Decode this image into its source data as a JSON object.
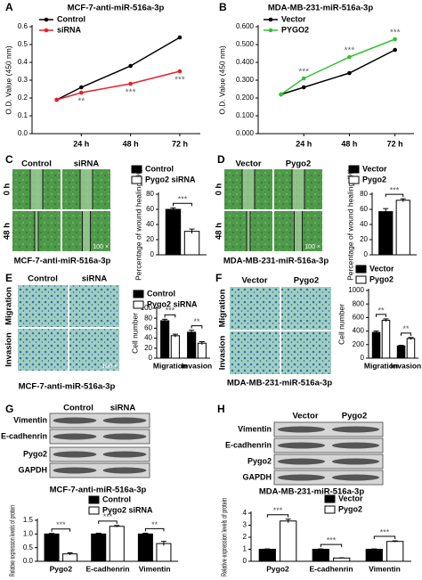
{
  "chart_data": [
    {
      "panel": "A",
      "type": "line",
      "title": "MCF-7-anti-miR-516a-3p",
      "y_label": "O.D. Value (450 nm)",
      "x": [
        12,
        24,
        48,
        72
      ],
      "xlim": [
        0,
        82
      ],
      "xticks": [
        {
          "value": 24,
          "label": "24 h"
        },
        {
          "value": 48,
          "label": "48 h"
        },
        {
          "value": 72,
          "label": "72 h"
        }
      ],
      "ylim": [
        0,
        0.6
      ],
      "yticks": [
        {
          "value": 0,
          "label": "0.0"
        },
        0.1,
        0.2,
        0.3,
        0.4,
        0.5,
        0.6
      ],
      "series": [
        {
          "name": "Control",
          "color": "#000000",
          "values": [
            0.19,
            0.26,
            0.38,
            0.54
          ]
        },
        {
          "name": "siRNA",
          "color": "#e8202a",
          "values": [
            0.19,
            0.23,
            0.28,
            0.35
          ]
        }
      ],
      "significance": [
        null,
        "**",
        "***",
        "***"
      ]
    },
    {
      "panel": "B",
      "type": "line",
      "title": "MDA-MB-231-miR-516a-3p",
      "y_label": "O.D. Value (450 nm)",
      "x": [
        12,
        24,
        48,
        72
      ],
      "xlim": [
        0,
        82
      ],
      "xticks": [
        {
          "value": 24,
          "label": "24 h"
        },
        {
          "value": 48,
          "label": "48 h"
        },
        {
          "value": 72,
          "label": "72 h"
        }
      ],
      "ylim": [
        0,
        0.6
      ],
      "yticks": [
        {
          "value": 0,
          "label": "0.000"
        },
        {
          "value": 0.1,
          "label": "0.100"
        },
        {
          "value": 0.2,
          "label": "0.200"
        },
        {
          "value": 0.3,
          "label": "0.300"
        },
        {
          "value": 0.4,
          "label": "0.400"
        },
        {
          "value": 0.5,
          "label": "0.500"
        },
        {
          "value": 0.6,
          "label": "0.600"
        }
      ],
      "series": [
        {
          "name": "Vector",
          "color": "#000000",
          "values": [
            0.22,
            0.26,
            0.34,
            0.47
          ]
        },
        {
          "name": "PYGO2",
          "color": "#33c233",
          "values": [
            0.22,
            0.31,
            0.43,
            0.53
          ]
        }
      ],
      "significance": [
        null,
        "***",
        "***",
        "***"
      ]
    },
    {
      "panel": "C",
      "type": "bar",
      "y_label": "Percentage of wound healing (%)",
      "categories": [
        null
      ],
      "ylim": [
        0,
        80
      ],
      "yticks": [
        0,
        20,
        40,
        60,
        80
      ],
      "series": [
        {
          "name": "Control",
          "color": "#000000",
          "values": [
            60
          ],
          "errors": [
            2
          ]
        },
        {
          "name": "Pygo2 siRNA",
          "color": "#ffffff",
          "values": [
            31
          ],
          "errors": [
            3
          ]
        }
      ],
      "significance": [
        "***"
      ]
    },
    {
      "panel": "D",
      "type": "bar",
      "y_label": "Percentage of wound healing (%)",
      "categories": [
        null
      ],
      "ylim": [
        0,
        80
      ],
      "yticks": [
        0,
        20,
        40,
        60,
        80
      ],
      "series": [
        {
          "name": "Vector",
          "color": "#000000",
          "values": [
            57
          ],
          "errors": [
            4
          ]
        },
        {
          "name": "Pygo2",
          "color": "#ffffff",
          "values": [
            72
          ],
          "errors": [
            2
          ]
        }
      ],
      "significance": [
        "***"
      ]
    },
    {
      "panel": "E",
      "type": "bar",
      "y_label": "Cell number",
      "categories": [
        "Migration",
        "Invasion"
      ],
      "ylim": [
        0,
        100
      ],
      "yticks": [
        0,
        20,
        40,
        60,
        80,
        100
      ],
      "series": [
        {
          "name": "Control",
          "color": "#000000",
          "values": [
            75,
            52
          ],
          "errors": [
            3,
            4
          ]
        },
        {
          "name": "Pygo2 siRNA",
          "color": "#ffffff",
          "values": [
            45,
            30
          ],
          "errors": [
            3,
            3
          ]
        }
      ],
      "significance": [
        "***",
        "**"
      ]
    },
    {
      "panel": "F",
      "type": "bar",
      "y_label": "Cell number",
      "categories": [
        "Migration",
        "Invasion"
      ],
      "ylim": [
        0,
        1000
      ],
      "yticks": [
        0,
        200,
        400,
        600,
        800,
        1000
      ],
      "series": [
        {
          "name": "Vector",
          "color": "#000000",
          "values": [
            380,
            180
          ],
          "errors": [
            20,
            10
          ]
        },
        {
          "name": "Pygo2",
          "color": "#ffffff",
          "values": [
            560,
            290
          ],
          "errors": [
            20,
            15
          ]
        }
      ],
      "significance": [
        "**",
        "**"
      ]
    },
    {
      "panel": "G",
      "type": "bar",
      "y_label": "Relative expression levels of protein",
      "categories": [
        "Pygo2",
        "E-cadhenrin",
        "Vimentin"
      ],
      "ylim": [
        0,
        1.5
      ],
      "yticks": [
        {
          "value": 0,
          "label": "0.0"
        },
        0.5,
        {
          "value": 1,
          "label": "1.0"
        },
        1.5
      ],
      "series": [
        {
          "name": "Control",
          "color": "#000000",
          "values": [
            1,
            1,
            1
          ],
          "errors": [
            0.02,
            0.03,
            0.03
          ]
        },
        {
          "name": "Pygo2 siRNA",
          "color": "#ffffff",
          "values": [
            0.27,
            1.28,
            0.65
          ],
          "errors": [
            0.04,
            0.03,
            0.08
          ]
        }
      ],
      "significance": [
        "***",
        "***",
        "**"
      ]
    },
    {
      "panel": "H",
      "type": "bar",
      "y_label": "Relative expression levels of protein",
      "categories": [
        "Pygo2",
        "E-cadhenrin",
        "Vimentin"
      ],
      "ylim": [
        0,
        4
      ],
      "yticks": [
        0,
        1,
        2,
        3,
        4
      ],
      "series": [
        {
          "name": "Vector",
          "color": "#000000",
          "values": [
            1,
            1,
            1
          ],
          "errors": [
            0.03,
            0.03,
            0.03
          ]
        },
        {
          "name": "Pygo2",
          "color": "#ffffff",
          "values": [
            3.35,
            0.27,
            1.65
          ],
          "errors": [
            0.15,
            0.02,
            0.05
          ]
        }
      ],
      "significance": [
        "***",
        "***",
        "***"
      ]
    }
  ],
  "micrographs": [
    {
      "columns": [
        "Control",
        "siRNA"
      ],
      "rows": [
        "0 h",
        "48 h"
      ],
      "scale": "100 ×",
      "caption": "MCF-7-anti-miR-516a-3p"
    },
    {
      "columns": [
        "Vector",
        "Pygo2"
      ],
      "rows": [
        "0 h",
        "48 h"
      ],
      "scale": "100 ×",
      "caption": "MDA-MB-231-miR-516a-3p"
    },
    {
      "columns": [
        "Control",
        "siRNA"
      ],
      "rows": [
        "Migration",
        "Invasion"
      ],
      "scale": "100 ×",
      "caption": "MCF-7-anti-miR-516a-3p"
    },
    {
      "columns": [
        "Vector",
        "Pygo2"
      ],
      "rows": [
        "Migration",
        "Invasion"
      ],
      "caption": "MDA-MB-231-miR-516a-3p"
    }
  ],
  "blots": [
    {
      "columns": [
        "Control",
        "siRNA"
      ],
      "rows": [
        "Vimentin",
        "E-cadhenrin",
        "Pygo2",
        "GAPDH"
      ],
      "caption": "MCF-7-anti-miR-516a-3p"
    },
    {
      "columns": [
        "Vector",
        "Pygo2"
      ],
      "rows": [
        "Vimentin",
        "E-cadhenrin",
        "Pygo2",
        "GAPDH"
      ],
      "caption": "MDA-MB-231-miR-516a-3p"
    }
  ]
}
